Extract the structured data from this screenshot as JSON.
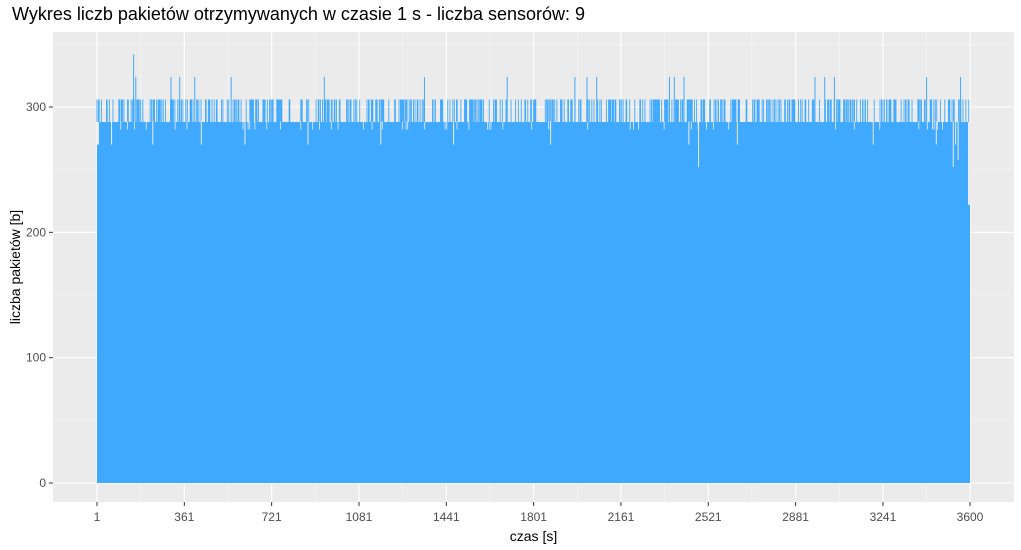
{
  "chart_data": {
    "type": "bar",
    "title": "Wykres liczb pakietów otrzymywanych w czasie 1 s - liczba sensorów: 9",
    "xlabel": "czas [s]",
    "ylabel": "liczba pakietów [b]",
    "xlim": [
      1,
      3600
    ],
    "ylim": [
      0,
      346
    ],
    "x_ticks": [
      1,
      361,
      721,
      1081,
      1441,
      1801,
      2161,
      2521,
      2881,
      3241,
      3600
    ],
    "y_ticks": [
      0,
      100,
      200,
      300
    ],
    "grid": true,
    "legend": "none",
    "bar_color": "#3fa9ff",
    "panel_background": "#ebebeb",
    "baseline_value": 288,
    "start_value": 270,
    "end_value": 222,
    "peaks": [
      {
        "x": 152,
        "y": 342
      },
      {
        "x": 161,
        "y": 324
      },
      {
        "x": 306,
        "y": 324
      },
      {
        "x": 342,
        "y": 324
      },
      {
        "x": 404,
        "y": 324
      },
      {
        "x": 554,
        "y": 324
      },
      {
        "x": 938,
        "y": 324
      },
      {
        "x": 1351,
        "y": 324
      },
      {
        "x": 1692,
        "y": 324
      },
      {
        "x": 1971,
        "y": 324
      },
      {
        "x": 2021,
        "y": 324
      },
      {
        "x": 2061,
        "y": 324
      },
      {
        "x": 2361,
        "y": 324
      },
      {
        "x": 2381,
        "y": 324
      },
      {
        "x": 2421,
        "y": 324
      },
      {
        "x": 2961,
        "y": 324
      },
      {
        "x": 3001,
        "y": 324
      },
      {
        "x": 3041,
        "y": 324
      },
      {
        "x": 3421,
        "y": 324
      },
      {
        "x": 3561,
        "y": 324
      }
    ],
    "dips": [
      {
        "x": 2481,
        "y": 252
      },
      {
        "x": 3531,
        "y": 252
      },
      {
        "x": 3551,
        "y": 258
      },
      {
        "x": 3541,
        "y": 270
      },
      {
        "x": 3201,
        "y": 270
      },
      {
        "x": 3461,
        "y": 270
      },
      {
        "x": 2641,
        "y": 270
      },
      {
        "x": 2441,
        "y": 270
      },
      {
        "x": 1871,
        "y": 270
      },
      {
        "x": 1471,
        "y": 270
      },
      {
        "x": 1171,
        "y": 270
      },
      {
        "x": 871,
        "y": 270
      },
      {
        "x": 611,
        "y": 270
      },
      {
        "x": 431,
        "y": 270
      },
      {
        "x": 231,
        "y": 270
      },
      {
        "x": 61,
        "y": 270
      }
    ]
  }
}
